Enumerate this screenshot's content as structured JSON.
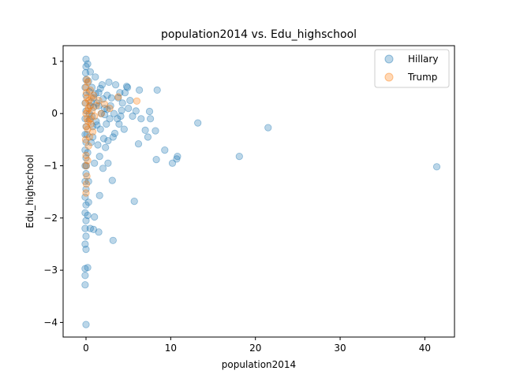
{
  "chart_data": {
    "type": "scatter",
    "title": "population2014 vs. Edu_highschool",
    "xlabel": "population2014",
    "ylabel": "Edu_highschool",
    "xlim": [
      -2.7,
      43.5
    ],
    "ylim": [
      -4.28,
      1.3
    ],
    "xticks": [
      0,
      10,
      20,
      30,
      40
    ],
    "yticks": [
      1,
      0,
      -1,
      -2,
      -3,
      -4
    ],
    "xtick_labels": [
      "0",
      "10",
      "20",
      "30",
      "40"
    ],
    "ytick_labels": [
      "1",
      "0",
      "−1",
      "−2",
      "−3",
      "−4"
    ],
    "grid": false,
    "legend_position": "top-right",
    "series": [
      {
        "name": "Hillary",
        "color": "#1f77b4",
        "opacity": 0.3,
        "points": [
          [
            41.4,
            -1.02
          ],
          [
            21.5,
            -0.27
          ],
          [
            18.1,
            -0.82
          ],
          [
            13.2,
            -0.18
          ],
          [
            10.8,
            -0.82
          ],
          [
            10.7,
            -0.87
          ],
          [
            10.2,
            -0.95
          ],
          [
            9.3,
            -0.7
          ],
          [
            8.4,
            0.45
          ],
          [
            8.3,
            -0.88
          ],
          [
            8.2,
            -0.33
          ],
          [
            7.6,
            -0.1
          ],
          [
            7.5,
            0.04
          ],
          [
            7.3,
            -0.45
          ],
          [
            7.0,
            -0.32
          ],
          [
            6.5,
            -0.1
          ],
          [
            6.3,
            0.45
          ],
          [
            6.2,
            -0.58
          ],
          [
            5.9,
            0.05
          ],
          [
            5.7,
            -1.68
          ],
          [
            5.5,
            -0.05
          ],
          [
            5.2,
            0.25
          ],
          [
            5.0,
            0.1
          ],
          [
            4.9,
            0.5
          ],
          [
            4.8,
            0.52
          ],
          [
            4.6,
            0.4
          ],
          [
            4.5,
            -0.3
          ],
          [
            4.3,
            0.2
          ],
          [
            4.2,
            0.06
          ],
          [
            4.1,
            -0.05
          ],
          [
            4.0,
            0.4
          ],
          [
            3.9,
            -0.2
          ],
          [
            3.8,
            0.3
          ],
          [
            3.7,
            -0.1
          ],
          [
            3.5,
            0.55
          ],
          [
            3.4,
            -0.38
          ],
          [
            3.3,
            0.0
          ],
          [
            3.2,
            -0.45
          ],
          [
            3.1,
            -1.28
          ],
          [
            3.2,
            -2.43
          ],
          [
            3.0,
            0.3
          ],
          [
            2.9,
            0.15
          ],
          [
            2.8,
            -0.1
          ],
          [
            2.7,
            0.6
          ],
          [
            2.6,
            -0.52
          ],
          [
            2.6,
            -0.95
          ],
          [
            2.5,
            0.35
          ],
          [
            2.4,
            -0.2
          ],
          [
            2.3,
            -0.65
          ],
          [
            2.2,
            0.1
          ],
          [
            2.1,
            -0.48
          ],
          [
            2.0,
            -1.05
          ],
          [
            1.9,
            0.55
          ],
          [
            1.8,
            0.0
          ],
          [
            1.7,
            -0.3
          ],
          [
            1.6,
            -0.82
          ],
          [
            1.6,
            -1.57
          ],
          [
            1.5,
            0.4
          ],
          [
            1.5,
            -2.27
          ],
          [
            1.4,
            -0.6
          ],
          [
            1.3,
            0.2
          ],
          [
            1.2,
            -0.15
          ],
          [
            1.1,
            0.7
          ],
          [
            1.0,
            -0.95
          ],
          [
            1.0,
            -1.98
          ],
          [
            0.9,
            0.3
          ],
          [
            0.9,
            -2.22
          ],
          [
            0.8,
            -0.25
          ],
          [
            0.7,
            0.5
          ],
          [
            0.6,
            -0.55
          ],
          [
            0.5,
            -2.2
          ],
          [
            0.5,
            0.8
          ],
          [
            0.4,
            0.0
          ],
          [
            0.3,
            -1.3
          ],
          [
            0.2,
            0.95
          ],
          [
            0.2,
            -2.95
          ],
          [
            0.1,
            -0.4
          ],
          [
            0.05,
            -1.0
          ],
          [
            0.0,
            1.04
          ],
          [
            0.0,
            0.9
          ],
          [
            -0.05,
            0.78
          ],
          [
            0.0,
            0.65
          ],
          [
            -0.1,
            0.5
          ],
          [
            0.0,
            0.35
          ],
          [
            -0.1,
            0.2
          ],
          [
            0.0,
            0.05
          ],
          [
            -0.1,
            -0.1
          ],
          [
            0.0,
            -0.25
          ],
          [
            -0.1,
            -0.4
          ],
          [
            0.0,
            -0.55
          ],
          [
            -0.1,
            -0.7
          ],
          [
            0.0,
            -0.85
          ],
          [
            -0.1,
            -1.0
          ],
          [
            0.0,
            -1.15
          ],
          [
            -0.1,
            -1.3
          ],
          [
            0.0,
            -1.45
          ],
          [
            -0.1,
            -1.6
          ],
          [
            0.0,
            -1.75
          ],
          [
            -0.1,
            -1.9
          ],
          [
            0.0,
            -2.05
          ],
          [
            -0.1,
            -2.2
          ],
          [
            0.0,
            -2.35
          ],
          [
            -0.1,
            -2.5
          ],
          [
            0.0,
            -2.6
          ],
          [
            -0.1,
            -2.97
          ],
          [
            -0.1,
            -3.1
          ],
          [
            -0.1,
            -3.28
          ],
          [
            0.0,
            -4.04
          ],
          [
            0.3,
            0.62
          ],
          [
            0.4,
            0.42
          ],
          [
            0.6,
            0.22
          ],
          [
            0.7,
            -0.05
          ],
          [
            0.9,
            0.12
          ],
          [
            1.1,
            0.38
          ],
          [
            1.3,
            -0.22
          ],
          [
            1.5,
            0.15
          ],
          [
            1.7,
            0.48
          ],
          [
            2.0,
            0.28
          ],
          [
            2.2,
            -0.02
          ],
          [
            2.5,
            0.08
          ],
          [
            0.2,
            -0.75
          ],
          [
            0.3,
            -1.7
          ],
          [
            0.2,
            -1.95
          ],
          [
            0.4,
            -0.12
          ],
          [
            0.5,
            0.15
          ],
          [
            0.8,
            -0.45
          ]
        ]
      },
      {
        "name": "Trump",
        "color": "#ff7f0e",
        "opacity": 0.3,
        "points": [
          [
            6.0,
            0.24
          ],
          [
            3.8,
            0.32
          ],
          [
            2.8,
            0.1
          ],
          [
            2.2,
            0.18
          ],
          [
            1.8,
            0.0
          ],
          [
            1.5,
            0.25
          ],
          [
            1.2,
            0.15
          ],
          [
            1.0,
            -0.05
          ],
          [
            0.9,
            0.35
          ],
          [
            0.8,
            -0.35
          ],
          [
            0.7,
            0.05
          ],
          [
            0.6,
            -0.2
          ],
          [
            0.5,
            0.45
          ],
          [
            0.4,
            -0.45
          ],
          [
            0.3,
            0.1
          ],
          [
            0.3,
            -0.62
          ],
          [
            0.2,
            0.6
          ],
          [
            0.2,
            -0.3
          ],
          [
            0.1,
            0.3
          ],
          [
            0.1,
            -0.1
          ],
          [
            0.1,
            -1.2
          ],
          [
            0.0,
            0.0
          ],
          [
            0.0,
            -0.8
          ],
          [
            0.0,
            -1.52
          ],
          [
            0.0,
            0.5
          ],
          [
            -0.05,
            0.2
          ],
          [
            -0.05,
            -0.5
          ],
          [
            0.05,
            0.4
          ],
          [
            0.05,
            -0.25
          ],
          [
            0.15,
            0.05
          ],
          [
            0.25,
            -0.15
          ],
          [
            0.35,
            0.25
          ],
          [
            0.45,
            0.15
          ],
          [
            0.55,
            -0.1
          ],
          [
            0.65,
            0.3
          ],
          [
            0.0,
            -1.0
          ],
          [
            0.05,
            -1.35
          ],
          [
            0.1,
            0.65
          ],
          [
            0.2,
            -0.9
          ]
        ]
      }
    ]
  }
}
